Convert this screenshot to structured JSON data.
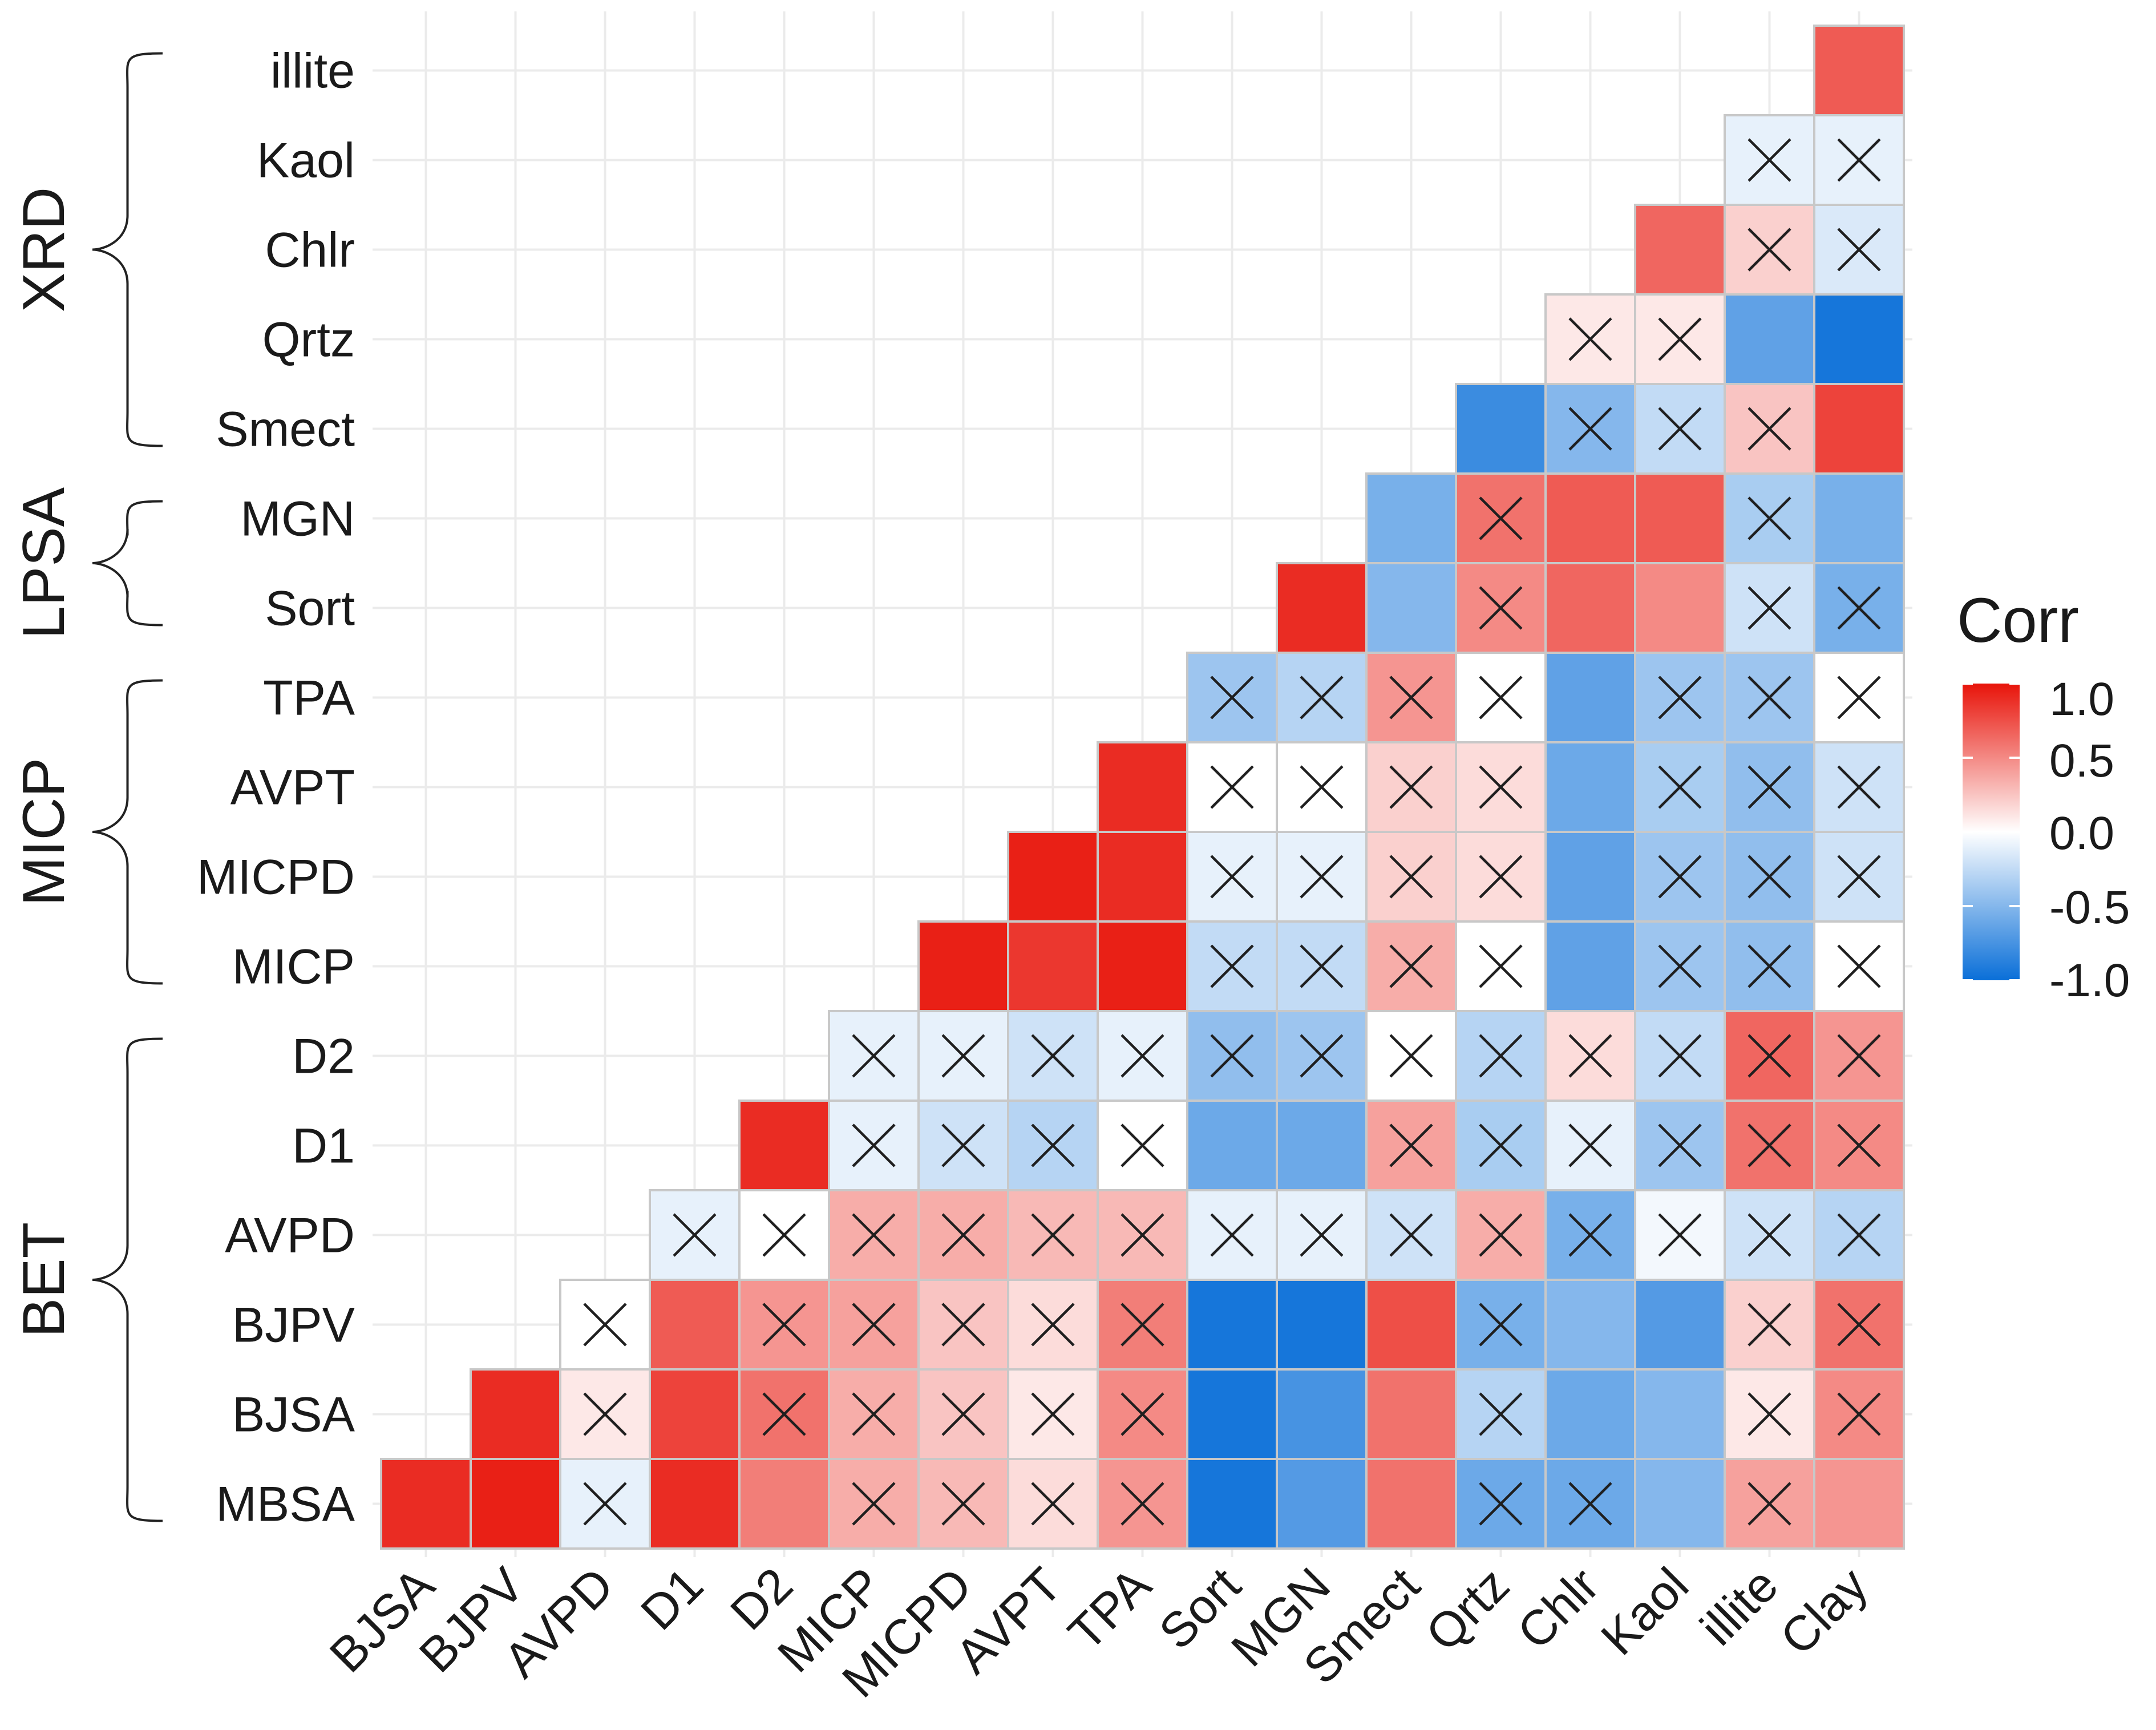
{
  "chart_data": {
    "type": "heatmap",
    "subtype": "lower-triangular correlation matrix",
    "title": "",
    "x_categories": [
      "BJSA",
      "BJPV",
      "AVPD",
      "D1",
      "D2",
      "MICP",
      "MICPD",
      "AVPT",
      "TPA",
      "Sort",
      "MGN",
      "Smect",
      "Qrtz",
      "Chlr",
      "Kaol",
      "illite",
      "Clay"
    ],
    "y_categories_top_to_bottom": [
      "illite",
      "Kaol",
      "Chlr",
      "Qrtz",
      "Smect",
      "MGN",
      "Sort",
      "TPA",
      "AVPT",
      "MICPD",
      "MICP",
      "D2",
      "D1",
      "AVPD",
      "BJPV",
      "BJSA",
      "MBSA"
    ],
    "cell_note": "rows[i] lists values for x_categories[j] where j >= i (lower triangle); insignificant cells are marked with an X",
    "rows": [
      {
        "label": "illite",
        "values": [
          0.7
        ],
        "insignificant": [
          false
        ]
      },
      {
        "label": "Kaol",
        "values": [
          -0.1,
          -0.1
        ],
        "insignificant": [
          true,
          true
        ]
      },
      {
        "label": "Chlr",
        "values": [
          0.65,
          0.2,
          -0.15
        ],
        "insignificant": [
          false,
          true,
          true
        ]
      },
      {
        "label": "Qrtz",
        "values": [
          0.1,
          0.1,
          -0.65,
          -0.95
        ],
        "insignificant": [
          true,
          true,
          false,
          false
        ]
      },
      {
        "label": "Smect",
        "values": [
          -0.8,
          -0.5,
          -0.25,
          0.25,
          0.8
        ],
        "insignificant": [
          false,
          true,
          true,
          true,
          false
        ]
      },
      {
        "label": "MGN",
        "values": [
          -0.55,
          0.6,
          0.7,
          0.7,
          -0.35,
          -0.55
        ],
        "insignificant": [
          false,
          true,
          false,
          false,
          true,
          false
        ]
      },
      {
        "label": "Sort",
        "values": [
          0.9,
          -0.5,
          0.5,
          0.65,
          0.5,
          -0.2,
          -0.55
        ],
        "insignificant": [
          false,
          false,
          true,
          false,
          false,
          true,
          true
        ]
      },
      {
        "label": "TPA",
        "values": [
          -0.4,
          -0.3,
          0.45,
          0.0,
          -0.65,
          -0.4,
          -0.4,
          0.0
        ],
        "insignificant": [
          true,
          true,
          true,
          true,
          false,
          true,
          true,
          true
        ]
      },
      {
        "label": "AVPT",
        "values": [
          0.9,
          0.0,
          0.0,
          0.2,
          0.15,
          -0.6,
          -0.35,
          -0.45,
          -0.2
        ],
        "insignificant": [
          false,
          true,
          true,
          true,
          true,
          false,
          true,
          true,
          true
        ]
      },
      {
        "label": "MICPD",
        "values": [
          0.95,
          0.9,
          -0.1,
          -0.1,
          0.2,
          0.15,
          -0.65,
          -0.4,
          -0.45,
          -0.2
        ],
        "insignificant": [
          false,
          false,
          true,
          true,
          true,
          true,
          false,
          true,
          true,
          true
        ]
      },
      {
        "label": "MICP",
        "values": [
          0.95,
          0.85,
          0.95,
          -0.25,
          -0.25,
          0.35,
          0.0,
          -0.65,
          -0.4,
          -0.45,
          0.0
        ],
        "insignificant": [
          false,
          false,
          false,
          true,
          true,
          true,
          true,
          false,
          true,
          true,
          true
        ]
      },
      {
        "label": "D2",
        "values": [
          -0.1,
          -0.1,
          -0.2,
          -0.1,
          -0.45,
          -0.4,
          0.0,
          -0.3,
          0.15,
          -0.25,
          0.65,
          0.45
        ],
        "insignificant": [
          true,
          true,
          true,
          true,
          true,
          true,
          true,
          true,
          true,
          true,
          true,
          true
        ]
      },
      {
        "label": "D1",
        "values": [
          0.9,
          -0.1,
          -0.2,
          -0.3,
          0.0,
          -0.6,
          -0.6,
          0.4,
          -0.35,
          -0.1,
          -0.4,
          0.6,
          0.5
        ],
        "insignificant": [
          false,
          true,
          true,
          true,
          true,
          false,
          false,
          true,
          true,
          true,
          true,
          true,
          true
        ]
      },
      {
        "label": "AVPD",
        "values": [
          -0.1,
          0.0,
          0.35,
          0.35,
          0.3,
          0.3,
          -0.1,
          -0.1,
          -0.2,
          0.35,
          -0.55,
          -0.05,
          -0.2,
          -0.3
        ],
        "insignificant": [
          true,
          true,
          true,
          true,
          true,
          true,
          true,
          true,
          true,
          true,
          true,
          true,
          true,
          true
        ]
      },
      {
        "label": "BJPV",
        "values": [
          0.0,
          0.7,
          0.45,
          0.4,
          0.25,
          0.15,
          0.55,
          -0.95,
          -0.95,
          0.75,
          -0.55,
          -0.5,
          -0.7,
          0.2,
          0.6
        ],
        "insignificant": [
          true,
          false,
          true,
          true,
          true,
          true,
          true,
          false,
          false,
          false,
          true,
          false,
          false,
          true,
          true
        ]
      },
      {
        "label": "BJSA",
        "values": [
          0.9,
          0.1,
          0.8,
          0.6,
          0.35,
          0.25,
          0.1,
          0.5,
          -0.95,
          -0.75,
          0.6,
          -0.3,
          -0.6,
          -0.5,
          0.1,
          0.5
        ],
        "insignificant": [
          false,
          true,
          false,
          true,
          true,
          true,
          true,
          true,
          false,
          false,
          false,
          true,
          false,
          false,
          true,
          true
        ]
      },
      {
        "label": "MBSA",
        "values": [
          0.9,
          0.95,
          -0.1,
          0.9,
          0.55,
          0.35,
          0.3,
          0.15,
          0.45,
          -0.95,
          -0.7,
          0.6,
          -0.6,
          -0.6,
          -0.5,
          0.4,
          0.45
        ],
        "insignificant": [
          false,
          false,
          true,
          false,
          false,
          true,
          true,
          true,
          true,
          false,
          false,
          false,
          true,
          true,
          false,
          true,
          false
        ]
      }
    ],
    "groups": [
      {
        "label": "XRD",
        "from": "illite",
        "to": "Smect"
      },
      {
        "label": "LPSA",
        "from": "MGN",
        "to": "Sort"
      },
      {
        "label": "MICP",
        "from": "TPA",
        "to": "MICP"
      },
      {
        "label": "BET",
        "from": "D2",
        "to": "MBSA"
      }
    ],
    "legend": {
      "title": "Corr",
      "ticks": [
        "1.0",
        "0.5",
        "0.0",
        "-0.5",
        "-1.0"
      ],
      "range": [
        -1.0,
        1.0
      ]
    },
    "colors": {
      "high": "#e8140a",
      "mid": "#ffffff",
      "low": "#0a6fd8",
      "grid": "#ebebeb",
      "cell_border": "#c8c8c8"
    }
  }
}
